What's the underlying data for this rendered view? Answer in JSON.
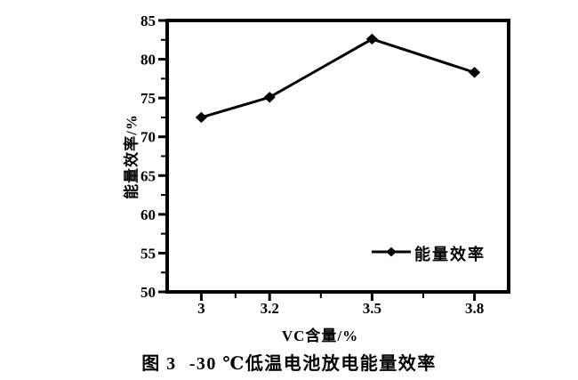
{
  "figure": {
    "caption": {
      "label": "图 3",
      "text": "-30 ℃低温电池放电能量效率"
    }
  },
  "chart_data": {
    "type": "line",
    "title": "",
    "xlabel": "VC含量/%",
    "ylabel": "能量效率/%",
    "x": [
      3,
      3.2,
      3.5,
      3.8
    ],
    "x_tick_labels": [
      "3",
      "3.2",
      "3.5",
      "3.8"
    ],
    "x_minor_ticks": [
      3.1,
      3.35,
      3.65
    ],
    "y_tick_labels": [
      "50",
      "55",
      "60",
      "65",
      "70",
      "75",
      "80",
      "85"
    ],
    "series": [
      {
        "name": "能量效率",
        "values": [
          72.5,
          75.1,
          82.6,
          78.3
        ],
        "color": "#000000",
        "marker": "diamond"
      }
    ],
    "xlim": [
      2.9,
      3.9
    ],
    "ylim": [
      50,
      85
    ],
    "y_major_step": 5,
    "y_minor_step": 2.5,
    "grid": false,
    "legend": {
      "position": "inside-lower-right",
      "entries": [
        "能量效率"
      ]
    }
  },
  "colors": {
    "line": "#000000",
    "background": "#ffffff",
    "text": "#000000"
  }
}
